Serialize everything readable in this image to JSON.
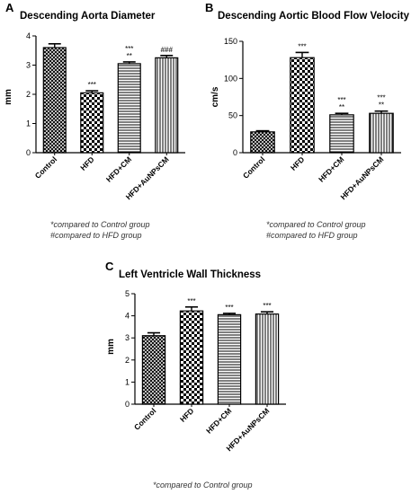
{
  "colors": {
    "ink": "#000000",
    "bar_fill": "#ffffff",
    "note_text": "#333333"
  },
  "chart_data": [
    {
      "panel_label": "A",
      "type": "bar",
      "title": "Descending Aorta Diameter",
      "ylabel": "mm",
      "xlabel": "",
      "ylim": [
        0,
        4
      ],
      "yticks": [
        0,
        1,
        2,
        3,
        4
      ],
      "categories": [
        "Control",
        "HFD",
        "HFD+CM",
        "HFD+AuNPsCM"
      ],
      "values": [
        3.6,
        2.05,
        3.05,
        3.25
      ],
      "errors": [
        0.13,
        0.07,
        0.06,
        0.08
      ],
      "patterns": [
        "crosshatch",
        "checker",
        "horizontal",
        "vertical"
      ],
      "significance": [
        [],
        [
          "***"
        ],
        [
          "***",
          "**"
        ],
        [
          "###"
        ]
      ],
      "footnotes": [
        "*compared to Control group",
        "#compared to HFD group"
      ],
      "grid": false
    },
    {
      "panel_label": "B",
      "type": "bar",
      "title": "Descending Aortic Blood Flow Velocity",
      "ylabel": "cm/s",
      "xlabel": "",
      "ylim": [
        0,
        150
      ],
      "yticks": [
        0,
        50,
        100,
        150
      ],
      "categories": [
        "Control",
        "HFD",
        "HFD+CM",
        "HFD+AuNPsCM"
      ],
      "values": [
        28,
        128,
        51,
        53
      ],
      "errors": [
        1.5,
        7,
        2,
        3
      ],
      "patterns": [
        "crosshatch",
        "checker",
        "horizontal",
        "vertical"
      ],
      "significance": [
        [],
        [
          "***"
        ],
        [
          "***",
          "**"
        ],
        [
          "***",
          "**"
        ]
      ],
      "footnotes": [
        "*compared to Control group",
        "#compared to HFD group"
      ],
      "grid": false
    },
    {
      "panel_label": "C",
      "type": "bar",
      "title": "Left Ventricle Wall Thickness",
      "ylabel": "mm",
      "xlabel": "",
      "ylim": [
        0,
        5
      ],
      "yticks": [
        0,
        1,
        2,
        3,
        4,
        5
      ],
      "categories": [
        "Control",
        "HFD",
        "HFD+CM",
        "HFD+AuNPsCM"
      ],
      "values": [
        3.1,
        4.22,
        4.05,
        4.08
      ],
      "errors": [
        0.13,
        0.18,
        0.06,
        0.1
      ],
      "patterns": [
        "crosshatch",
        "checker",
        "horizontal",
        "vertical"
      ],
      "significance": [
        [],
        [
          "***"
        ],
        [
          "***"
        ],
        [
          "***"
        ]
      ],
      "footnotes": [
        "*compared to Control group"
      ],
      "grid": false
    }
  ]
}
